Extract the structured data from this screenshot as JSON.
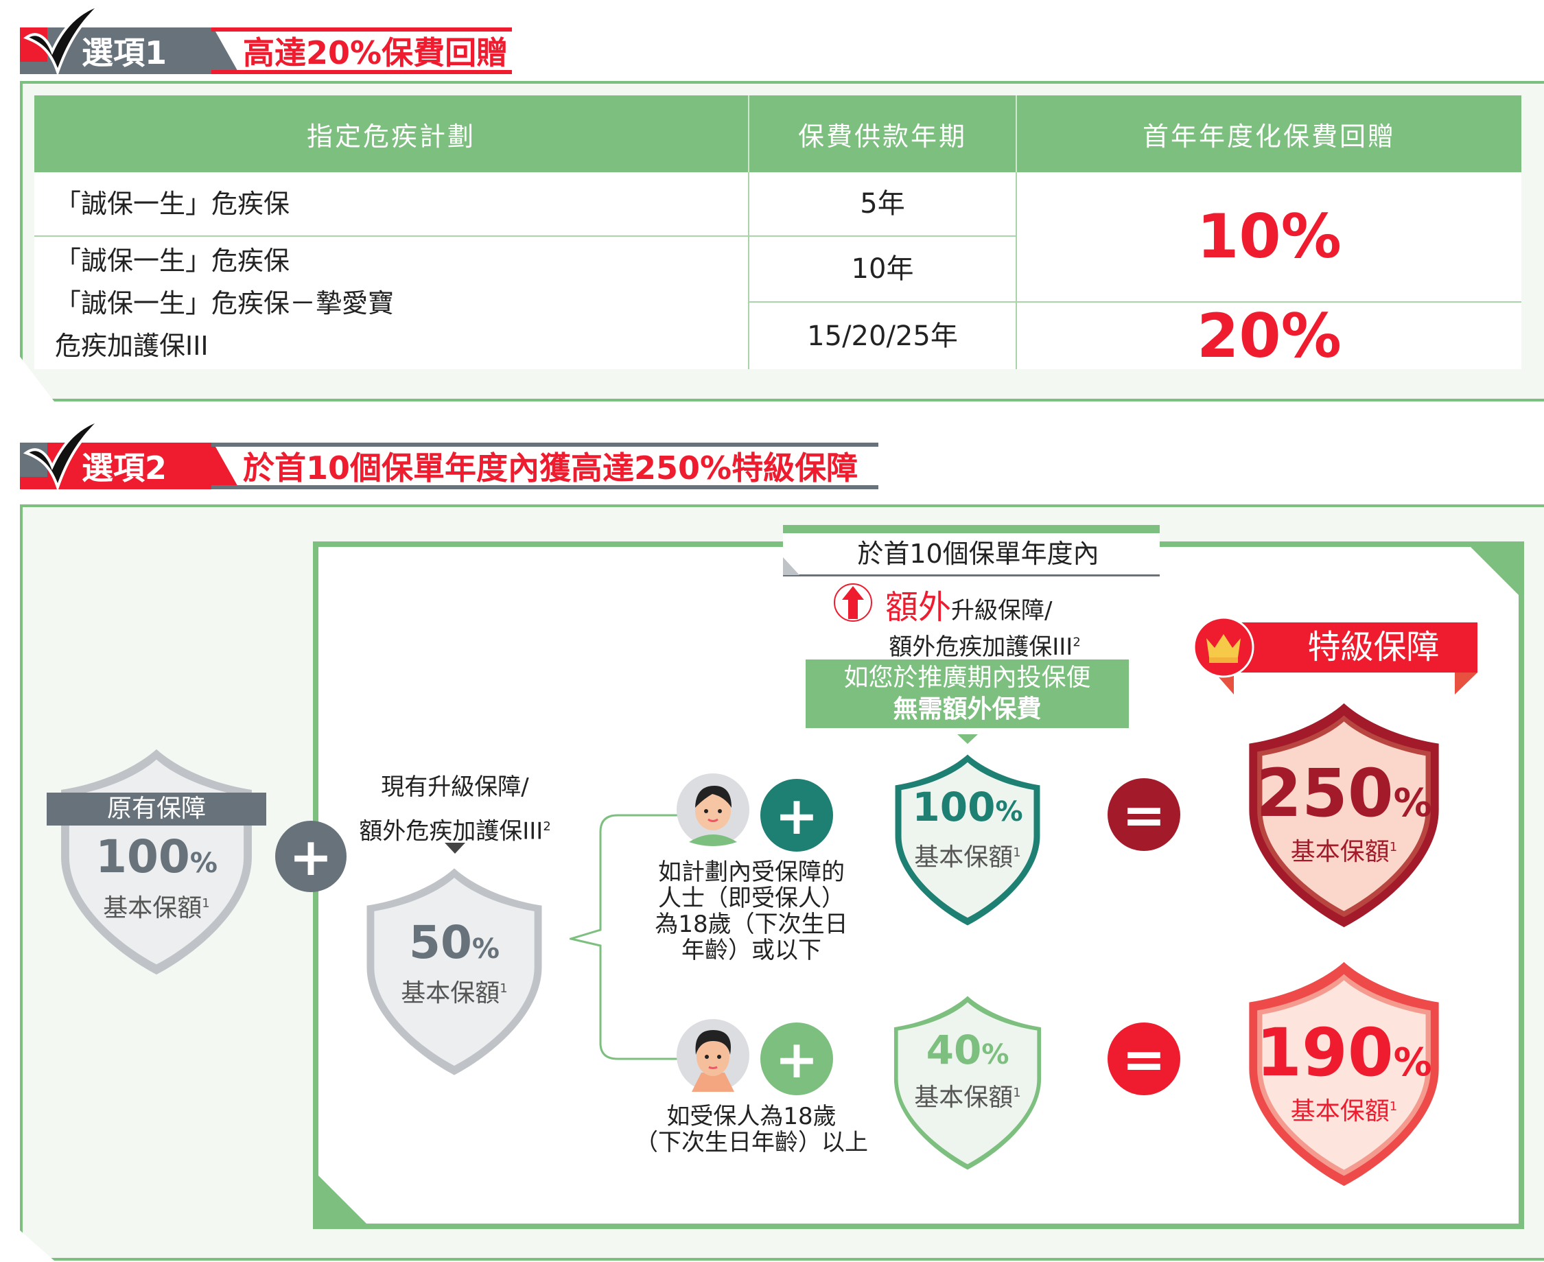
{
  "option1": {
    "tag": "選項1",
    "title": "高達20%保費回贈",
    "table": {
      "headers": [
        "指定危疾計劃",
        "保費供款年期",
        "首年年度化保費回贈"
      ],
      "plan_row1": "「誠保一生」危疾保",
      "plan_row2": [
        "「誠保一生」危疾保",
        "「誠保一生」危疾保－摯愛寶",
        "危疾加護保III"
      ],
      "terms": [
        "5年",
        "10年",
        "15/20/25年"
      ],
      "rebates": [
        "10%",
        "20%"
      ]
    }
  },
  "option2": {
    "tag": "選項2",
    "title": "於首10個保單年度內獲高達250%特級保障",
    "original": {
      "label": "原有保障",
      "pct": "100",
      "unit": "%",
      "desc": "基本保額",
      "sup": "1"
    },
    "existing": {
      "line1": "現有升級保障/",
      "line2": "額外危疾加護保III",
      "sup": "2",
      "pct": "50",
      "unit": "%",
      "desc": "基本保額",
      "desc_sup": "1"
    },
    "period_header": "於首10個保單年度內",
    "extra": {
      "red": "額外",
      "rest": "升級保障/",
      "line2": "額外危疾加護保III",
      "sup": "2"
    },
    "banner": {
      "line1": "如您於推廣期內投保便",
      "line2": "無需額外保費"
    },
    "child": {
      "text": [
        "如計劃內受保障的",
        "人士（即受保人）",
        "為18歲（下次生日",
        "年齡）或以下"
      ],
      "pct": "100",
      "unit": "%",
      "desc": "基本保額",
      "sup": "1"
    },
    "adult": {
      "text": [
        "如受保人為18歲",
        "（下次生日年齡）以上"
      ],
      "pct": "40",
      "unit": "%",
      "desc": "基本保額",
      "sup": "1"
    },
    "special": {
      "label": "特級保障"
    },
    "result_child": {
      "pct": "250",
      "unit": "%",
      "desc": "基本保額",
      "sup": "1"
    },
    "result_adult": {
      "pct": "190",
      "unit": "%",
      "desc": "基本保額",
      "sup": "1"
    },
    "symbols": {
      "plus": "+",
      "equals": "="
    }
  },
  "colors": {
    "green": "#7dbf7f",
    "red": "#ee1c2e",
    "teal": "#1e7f73",
    "darkred": "#a31a2a",
    "gray": "#67727a"
  }
}
